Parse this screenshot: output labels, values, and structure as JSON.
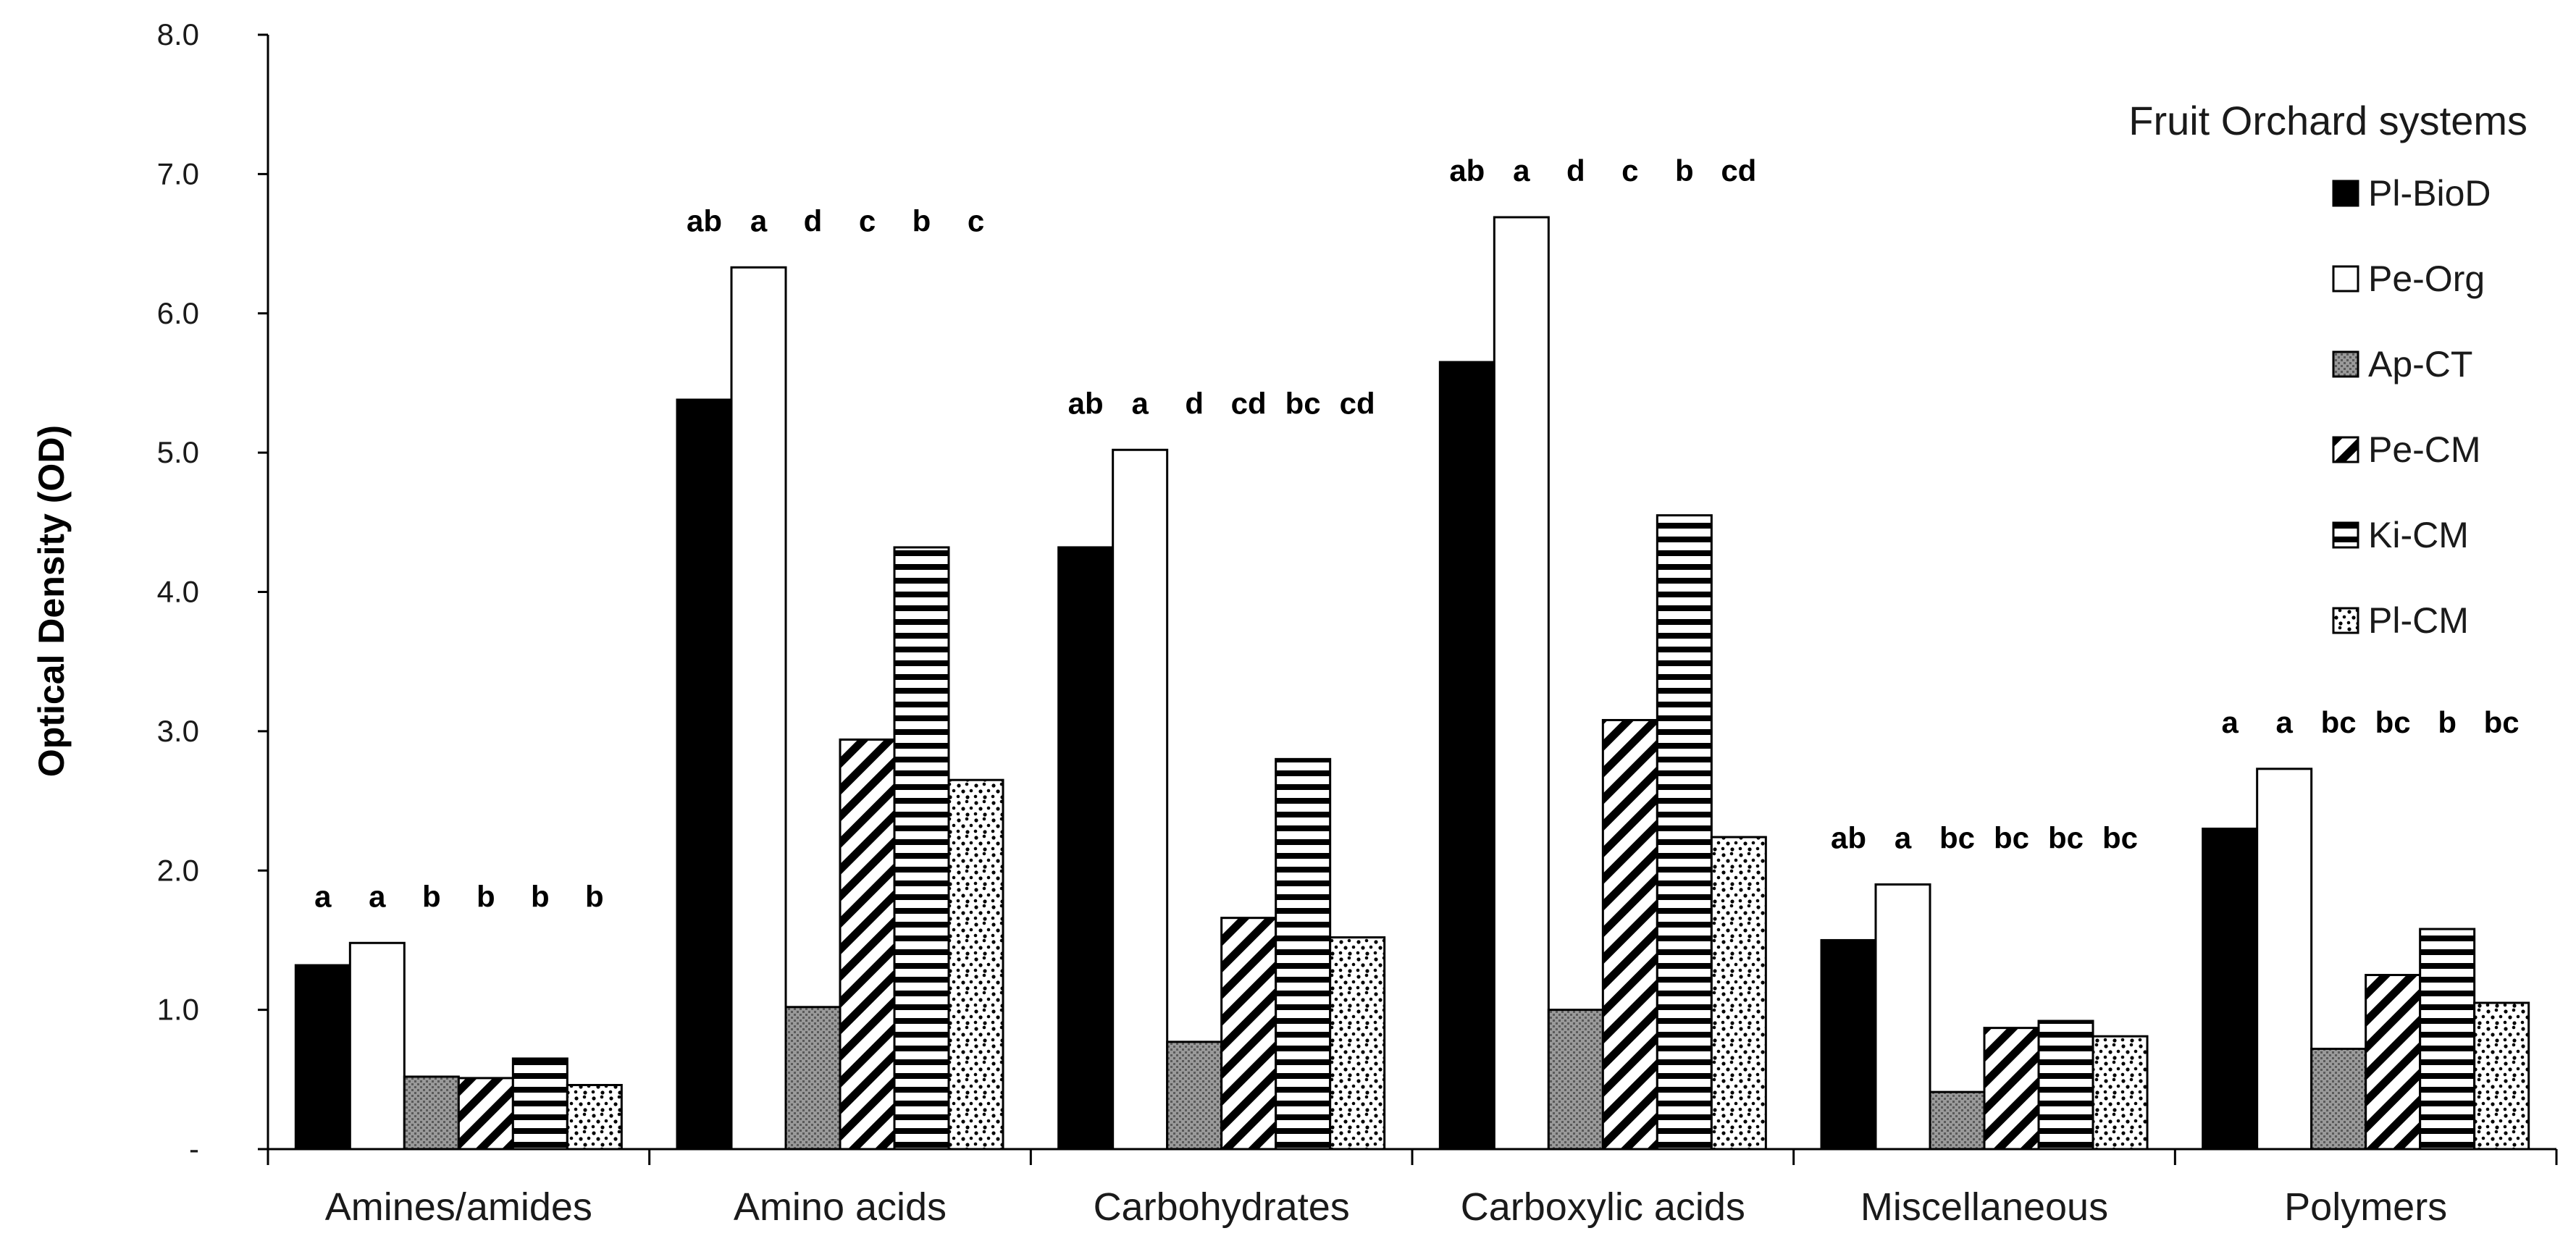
{
  "chart_data": {
    "type": "bar",
    "title": "",
    "xlabel": "",
    "ylabel": "Optical Density (OD)",
    "ylim": [
      0,
      8
    ],
    "yticks": [
      "-",
      "1.0",
      "2.0",
      "3.0",
      "4.0",
      "5.0",
      "6.0",
      "7.0",
      "8.0"
    ],
    "grid": false,
    "legend_title": "Fruit Orchard systems",
    "legend_position": "top-right",
    "categories": [
      "Amines/amides",
      "Amino acids",
      "Carbohydrates",
      "Carboxylic acids",
      "Miscellaneous",
      "Polymers"
    ],
    "series": [
      {
        "name": "Pl-BioD",
        "pattern": "solid-black",
        "values": [
          1.32,
          5.38,
          4.32,
          5.65,
          1.5,
          2.3
        ]
      },
      {
        "name": "Pe-Org",
        "pattern": "white",
        "values": [
          1.48,
          6.33,
          5.02,
          6.69,
          1.9,
          2.73
        ]
      },
      {
        "name": "Ap-CT",
        "pattern": "gray-dots",
        "values": [
          0.52,
          1.02,
          0.77,
          1.0,
          0.41,
          0.72
        ]
      },
      {
        "name": "Pe-CM",
        "pattern": "diagonal-stripes",
        "values": [
          0.51,
          2.94,
          1.66,
          3.08,
          0.87,
          1.25
        ]
      },
      {
        "name": "Ki-CM",
        "pattern": "horizontal-stripes",
        "values": [
          0.65,
          4.32,
          2.8,
          4.55,
          0.92,
          1.58
        ]
      },
      {
        "name": "Pl-CM",
        "pattern": "speckled",
        "values": [
          0.46,
          2.65,
          1.52,
          2.24,
          0.81,
          1.05
        ]
      }
    ],
    "significance_labels": [
      [
        "a",
        "a",
        "b",
        "b",
        "b",
        "b"
      ],
      [
        "ab",
        "a",
        "d",
        "c",
        "b",
        "c"
      ],
      [
        "ab",
        "a",
        "d",
        "cd",
        "bc",
        "cd"
      ],
      [
        "ab",
        "a",
        "d",
        "c",
        "b",
        "cd"
      ],
      [
        "ab",
        "a",
        "bc",
        "bc",
        "bc",
        "bc"
      ],
      [
        "a",
        "a",
        "bc",
        "bc",
        "b",
        "bc"
      ]
    ]
  }
}
